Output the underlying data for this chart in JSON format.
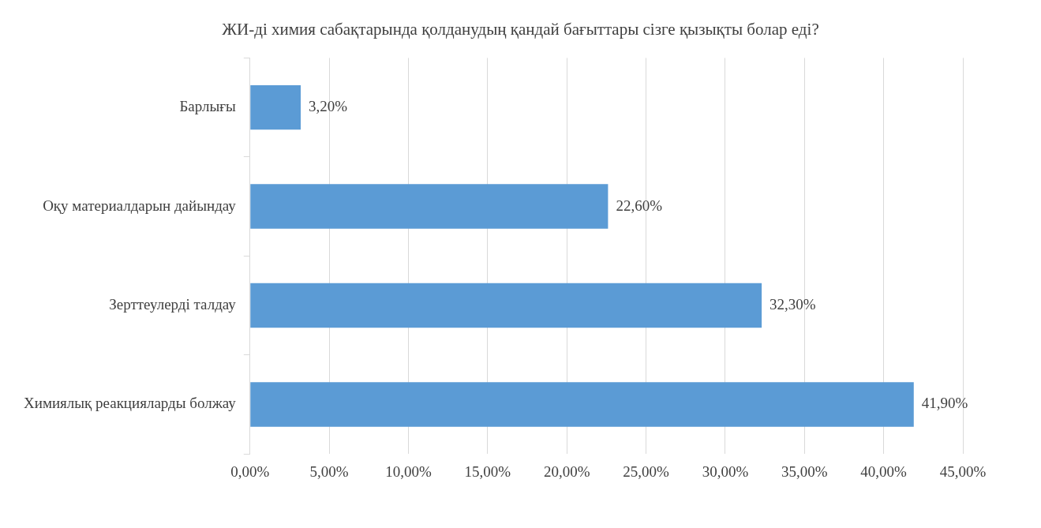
{
  "chart_data": {
    "type": "bar",
    "orientation": "horizontal",
    "title": "ЖИ-ді химия сабақтарында қолданудың қандай бағыттары сізге қызықты болар еді?",
    "categories": [
      "Барлығы",
      "Оқу материалдарын дайындау",
      "Зерттеулерді талдау",
      "Химиялық реакцияларды болжау"
    ],
    "values": [
      3.2,
      22.6,
      32.3,
      41.9
    ],
    "value_labels": [
      "3,20%",
      "22,60%",
      "32,30%",
      "41,90%"
    ],
    "color": "#5b9bd5",
    "xlim": [
      0,
      45
    ],
    "xticks": [
      {
        "value": 0,
        "label": "0,00%"
      },
      {
        "value": 5,
        "label": "5,00%"
      },
      {
        "value": 10,
        "label": "10,00%"
      },
      {
        "value": 15,
        "label": "15,00%"
      },
      {
        "value": 20,
        "label": "20,00%"
      },
      {
        "value": 25,
        "label": "25,00%"
      },
      {
        "value": 30,
        "label": "30,00%"
      },
      {
        "value": 35,
        "label": "35,00%"
      },
      {
        "value": 40,
        "label": "40,00%"
      },
      {
        "value": 45,
        "label": "45,00%"
      }
    ],
    "grid": "x",
    "legend": false
  }
}
